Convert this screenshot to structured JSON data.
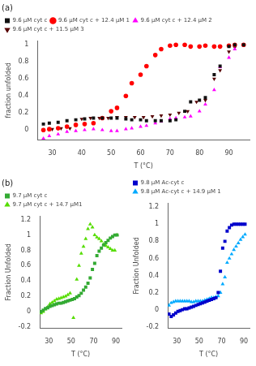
{
  "chart_data": [
    {
      "type": "scatter",
      "title": "(a)",
      "xlabel": "T (°C)",
      "ylabel": "fraction unfolded",
      "xlim": [
        25,
        97
      ],
      "xticks": [
        30,
        40,
        50,
        60,
        70,
        80,
        90
      ],
      "ylim": [
        -0.12,
        1.05
      ],
      "yticks": [
        0,
        0.2,
        0.4,
        0.6,
        0.8,
        1
      ],
      "grid": false,
      "legend": "upper left",
      "series": [
        {
          "name": "9.6 μM cyt c",
          "color": "#111111",
          "marker": "square",
          "x": [
            27,
            29,
            32,
            35,
            38,
            41,
            44,
            47,
            50,
            52,
            55,
            57,
            60,
            62,
            65,
            67,
            70,
            72,
            75,
            77,
            80,
            82,
            85,
            87,
            90,
            92,
            95
          ],
          "values": [
            0.07,
            0.08,
            0.09,
            0.11,
            0.12,
            0.13,
            0.14,
            0.14,
            0.14,
            0.14,
            0.13,
            0.12,
            0.12,
            0.11,
            0.11,
            0.11,
            0.11,
            0.12,
            0.22,
            0.33,
            0.35,
            0.38,
            0.65,
            0.75,
            0.98,
            1.0,
            1.0
          ]
        },
        {
          "name": "9.6 μM cyt c + 12.4 μM 1",
          "color": "#ff0000",
          "marker": "circle",
          "x": [
            27,
            29,
            32,
            35,
            38,
            41,
            44,
            47,
            50,
            52,
            55,
            57,
            60,
            62,
            65,
            67,
            70,
            72,
            75,
            77,
            80,
            82,
            85,
            87,
            90,
            92,
            95
          ],
          "values": [
            0.0,
            0.01,
            0.02,
            0.04,
            0.06,
            0.07,
            0.08,
            0.14,
            0.22,
            0.26,
            0.4,
            0.55,
            0.65,
            0.75,
            0.88,
            0.95,
            0.99,
            1.0,
            1.0,
            0.98,
            0.98,
            0.99,
            0.98,
            0.98,
            0.99,
            1.0,
            1.0
          ]
        },
        {
          "name": "9.6 μM cyt c + 12.4 μM 2",
          "color": "#ff00ff",
          "marker": "triangle-up",
          "x": [
            27,
            29,
            32,
            35,
            38,
            41,
            44,
            47,
            50,
            52,
            55,
            57,
            60,
            62,
            65,
            67,
            70,
            72,
            75,
            77,
            80,
            82,
            85,
            87,
            90,
            92,
            95
          ],
          "values": [
            -0.1,
            -0.07,
            -0.05,
            -0.02,
            -0.01,
            0.0,
            0.01,
            0.0,
            -0.01,
            -0.01,
            0.01,
            0.02,
            0.04,
            0.05,
            0.08,
            0.1,
            0.13,
            0.14,
            0.15,
            0.16,
            0.22,
            0.3,
            0.47,
            0.74,
            0.85,
            0.95,
            1.0
          ]
        },
        {
          "name": "9.6 μM cyt c + 11.5 μM 3",
          "color": "#550000",
          "marker": "triangle-down",
          "x": [
            27,
            30,
            33,
            36,
            40,
            43,
            46,
            49,
            52,
            55,
            58,
            61,
            64,
            67,
            70,
            73,
            76,
            79,
            82,
            85,
            87,
            90,
            92,
            95
          ],
          "values": [
            0.0,
            0.01,
            0.02,
            0.02,
            0.13,
            0.14,
            0.14,
            0.14,
            0.15,
            0.15,
            0.15,
            0.15,
            0.16,
            0.17,
            0.18,
            0.2,
            0.22,
            0.33,
            0.35,
            0.6,
            0.7,
            0.92,
            0.97,
            1.0
          ]
        }
      ]
    },
    {
      "type": "scatter",
      "title": "(b)",
      "xlabel": "T (°C)",
      "ylabel": "Fraction Unfolded",
      "xlim": [
        22,
        95
      ],
      "xticks": [
        30,
        50,
        70,
        90
      ],
      "ylim": [
        -0.22,
        1.25
      ],
      "yticks": [
        -0.2,
        0,
        0.2,
        0.4,
        0.6,
        0.8,
        1,
        1.2
      ],
      "grid": false,
      "legend": "upper left",
      "series": [
        {
          "name": "9.7 μM cyt c",
          "color": "#33aa33",
          "marker": "square",
          "x": [
            23,
            25,
            27,
            29,
            31,
            33,
            35,
            37,
            39,
            41,
            43,
            45,
            47,
            49,
            51,
            53,
            55,
            57,
            59,
            61,
            63,
            65,
            67,
            69,
            71,
            73,
            75,
            77,
            79,
            81,
            83,
            85,
            87,
            89,
            91
          ],
          "values": [
            0.0,
            0.02,
            0.04,
            0.05,
            0.07,
            0.08,
            0.09,
            0.1,
            0.11,
            0.11,
            0.12,
            0.13,
            0.14,
            0.15,
            0.16,
            0.17,
            0.19,
            0.21,
            0.24,
            0.28,
            0.32,
            0.37,
            0.44,
            0.55,
            0.63,
            0.73,
            0.79,
            0.83,
            0.87,
            0.9,
            0.93,
            0.96,
            0.98,
            1.0,
            1.0
          ]
        },
        {
          "name": "9.7 μM cyt c + 14.7 μM1",
          "color": "#55dd00",
          "marker": "triangle-up",
          "x": [
            23,
            25,
            27,
            29,
            31,
            33,
            35,
            37,
            39,
            41,
            43,
            45,
            47,
            49,
            52,
            55,
            57,
            59,
            61,
            63,
            65,
            67,
            69,
            71,
            73,
            75,
            77,
            79,
            81,
            83,
            85,
            87,
            89,
            91
          ],
          "values": [
            -0.02,
            0.0,
            0.03,
            0.06,
            0.1,
            0.12,
            0.14,
            0.16,
            0.17,
            0.18,
            0.19,
            0.2,
            0.22,
            0.24,
            -0.08,
            0.42,
            0.6,
            0.76,
            0.85,
            0.95,
            1.08,
            1.14,
            1.1,
            1.0,
            0.97,
            0.95,
            0.92,
            0.88,
            0.86,
            0.84,
            0.82,
            0.8,
            0.8,
            1.0
          ]
        }
      ]
    },
    {
      "type": "scatter",
      "xlabel": "T (°C)",
      "ylabel": "Fraction Unfolded",
      "xlim": [
        22,
        95
      ],
      "xticks": [
        30,
        50,
        70,
        90
      ],
      "ylim": [
        -0.22,
        1.25
      ],
      "yticks": [
        -0.2,
        0,
        0.2,
        0.4,
        0.6,
        0.8,
        1,
        1.2
      ],
      "grid": false,
      "legend": "upper left",
      "series": [
        {
          "name": "9.8 μM Ac-cyt c",
          "color": "#0000cc",
          "marker": "square",
          "x": [
            23,
            25,
            27,
            29,
            31,
            33,
            35,
            37,
            39,
            41,
            43,
            45,
            47,
            49,
            51,
            53,
            55,
            57,
            59,
            61,
            63,
            65,
            67,
            69,
            71,
            73,
            75,
            77,
            79,
            81,
            83,
            85,
            87,
            89,
            91
          ],
          "values": [
            -0.05,
            -0.08,
            -0.06,
            -0.04,
            -0.02,
            -0.01,
            0.0,
            0.01,
            0.01,
            0.02,
            0.03,
            0.04,
            0.05,
            0.06,
            0.07,
            0.08,
            0.09,
            0.1,
            0.11,
            0.12,
            0.13,
            0.14,
            0.2,
            0.45,
            0.72,
            0.8,
            0.92,
            0.96,
            0.99,
            1.0,
            1.0,
            1.0,
            1.0,
            1.0,
            1.0
          ]
        },
        {
          "name": "9.8 μM Ac-cyt c + 14.9 μM 1",
          "color": "#00aaff",
          "marker": "triangle-up",
          "x": [
            23,
            25,
            27,
            29,
            31,
            33,
            35,
            37,
            39,
            41,
            43,
            45,
            47,
            49,
            51,
            53,
            55,
            57,
            59,
            61,
            63,
            65,
            67,
            69,
            71,
            73,
            75,
            77,
            79,
            81,
            83,
            85,
            87,
            89,
            91
          ],
          "values": [
            0.05,
            0.08,
            0.09,
            0.1,
            0.1,
            0.1,
            0.1,
            0.1,
            0.1,
            0.1,
            0.09,
            0.09,
            0.1,
            0.1,
            0.1,
            0.1,
            0.11,
            0.12,
            0.13,
            0.14,
            0.14,
            0.15,
            0.16,
            0.2,
            0.3,
            0.38,
            0.55,
            0.6,
            0.65,
            0.7,
            0.74,
            0.78,
            0.82,
            0.85,
            0.88
          ]
        }
      ]
    }
  ]
}
